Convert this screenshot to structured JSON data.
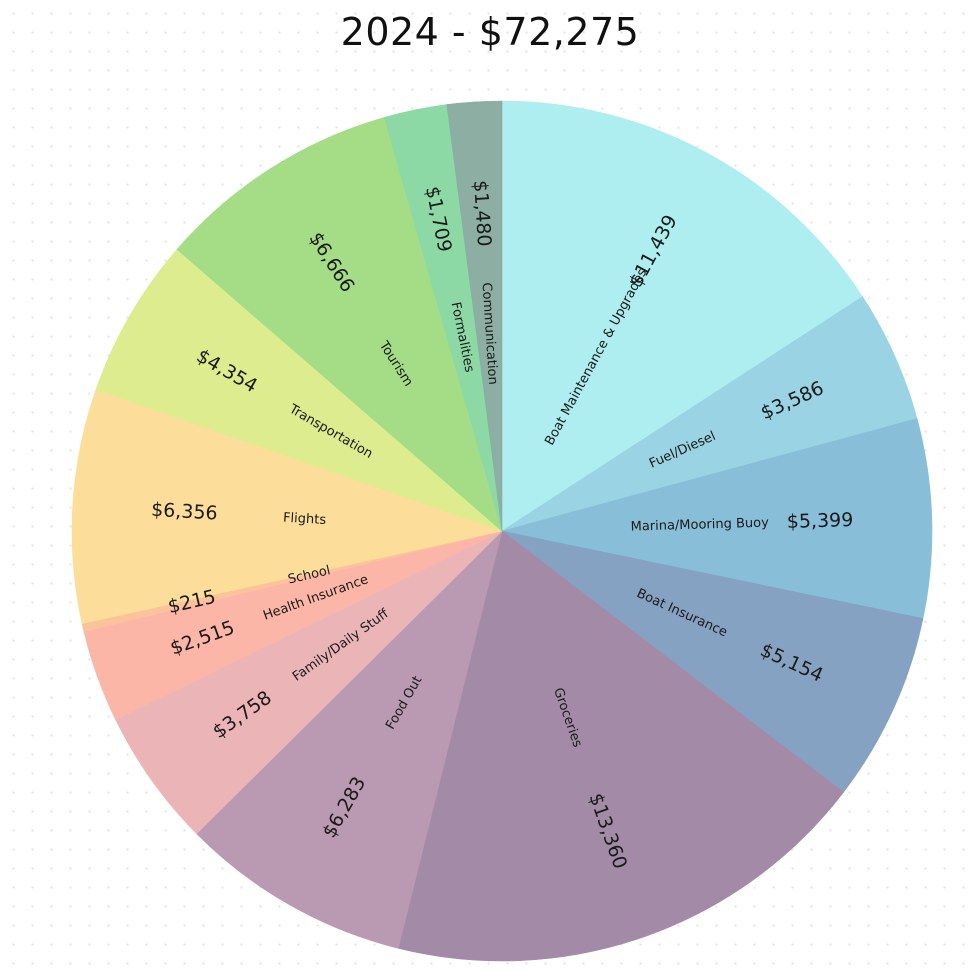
{
  "chart_data": {
    "type": "pie",
    "title": "2024 - $72,275",
    "start_angle_deg": 0,
    "direction": "clockwise",
    "slices": [
      {
        "label": "Boat Maintenance & Upgrades",
        "value": 11439,
        "value_label": "$11,439",
        "color": "#aeedf0"
      },
      {
        "label": "Fuel/Diesel",
        "value": 3586,
        "value_label": "$3,586",
        "color": "#9ad4e4"
      },
      {
        "label": "Marina/Mooring Buoy",
        "value": 5399,
        "value_label": "$5,399",
        "color": "#89bed9"
      },
      {
        "label": "Boat Insurance",
        "value": 5154,
        "value_label": "$5,154",
        "color": "#86a2c3"
      },
      {
        "label": "Groceries",
        "value": 13360,
        "value_label": "$13,360",
        "color": "#a38ba8"
      },
      {
        "label": "Food Out",
        "value": 6283,
        "value_label": "$6,283",
        "color": "#ba99b2"
      },
      {
        "label": "Family/Daily Stuff",
        "value": 3758,
        "value_label": "$3,758",
        "color": "#ebb5b8"
      },
      {
        "label": "Health Insurance",
        "value": 2515,
        "value_label": "$2,515",
        "color": "#fbb6a8"
      },
      {
        "label": "School",
        "value": 215,
        "value_label": "$215",
        "color": "#fcc29c"
      },
      {
        "label": "Flights",
        "value": 6356,
        "value_label": "$6,356",
        "color": "#fcde9a"
      },
      {
        "label": "Transportation",
        "value": 4354,
        "value_label": "$4,354",
        "color": "#dcec8f"
      },
      {
        "label": "Tourism",
        "value": 6666,
        "value_label": "$6,666",
        "color": "#a4dd86"
      },
      {
        "label": "Formalities",
        "value": 1709,
        "value_label": "$1,709",
        "color": "#8cd9a6"
      },
      {
        "label": "Communication",
        "value": 1480,
        "value_label": "$1,480",
        "color": "#8caea3"
      }
    ]
  }
}
